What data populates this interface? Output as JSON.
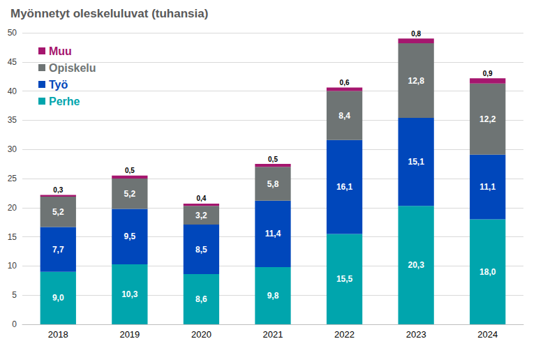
{
  "chart_data": {
    "type": "bar",
    "title": "Myönnetyt oleskeluluvat (tuhansia)",
    "categories": [
      "2018",
      "2019",
      "2020",
      "2021",
      "2022",
      "2023",
      "2024"
    ],
    "stacked": true,
    "grid": true,
    "legend": "top-left",
    "data_labels": true,
    "ylim": [
      0,
      50
    ],
    "yticks": [
      0,
      5,
      10,
      15,
      20,
      25,
      30,
      35,
      40,
      45,
      50
    ],
    "series": [
      {
        "name": "Perhe",
        "color": "#00A5AD",
        "values": [
          9.0,
          10.3,
          8.6,
          9.8,
          15.5,
          20.3,
          18.0
        ],
        "value_labels": [
          "9,0",
          "10,3",
          "8,6",
          "9,8",
          "15,5",
          "20,3",
          "18,0"
        ]
      },
      {
        "name": "Työ",
        "color": "#0047BB",
        "values": [
          7.7,
          9.5,
          8.5,
          11.4,
          16.1,
          15.1,
          11.1
        ],
        "value_labels": [
          "7,7",
          "9,5",
          "8,5",
          "11,4",
          "16,1",
          "15,1",
          "11,1"
        ]
      },
      {
        "name": "Opiskelu",
        "color": "#6E7474",
        "values": [
          5.2,
          5.2,
          3.2,
          5.8,
          8.4,
          12.8,
          12.2
        ],
        "value_labels": [
          "5,2",
          "5,2",
          "3,2",
          "5,8",
          "8,4",
          "12,8",
          "12,2"
        ]
      },
      {
        "name": "Muu",
        "color": "#A5166E",
        "values": [
          0.3,
          0.5,
          0.4,
          0.5,
          0.6,
          0.8,
          0.9
        ],
        "value_labels": [
          "0,3",
          "0,5",
          "0,4",
          "0,5",
          "0,6",
          "0,8",
          "0,9"
        ]
      }
    ]
  }
}
